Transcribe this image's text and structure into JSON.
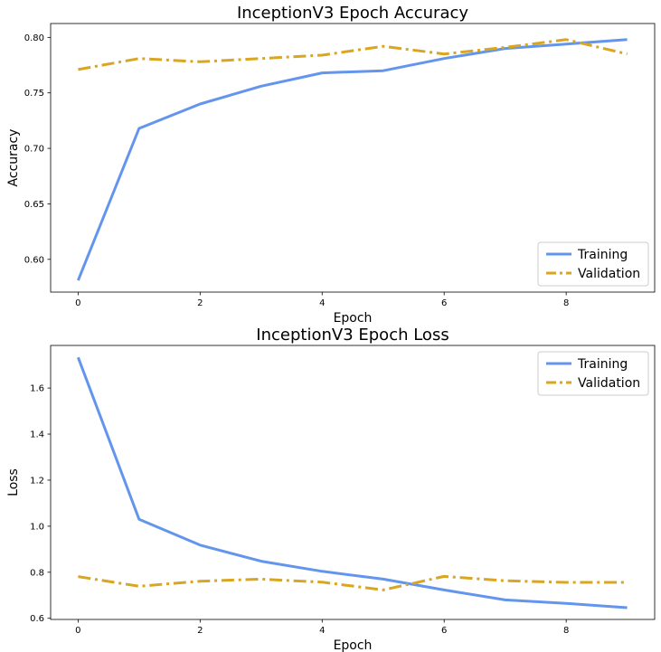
{
  "chart_data": [
    {
      "type": "line",
      "title": "InceptionV3 Epoch Accuracy",
      "xlabel": "Epoch",
      "ylabel": "Accuracy",
      "xlim": [
        -0.45,
        9.45
      ],
      "ylim": [
        0.5705,
        0.8125
      ],
      "xticks": [
        0,
        2,
        4,
        6,
        8
      ],
      "yticks": [
        0.6,
        0.65,
        0.7,
        0.75,
        0.8
      ],
      "ytick_labels": [
        "0.60",
        "0.65",
        "0.70",
        "0.75",
        "0.80"
      ],
      "legend_position": "lower-right",
      "grid": false,
      "x": [
        0,
        1,
        2,
        3,
        4,
        5,
        6,
        7,
        8,
        9
      ],
      "series": [
        {
          "name": "Training",
          "color": "#6495ED",
          "style": "solid",
          "values": [
            0.581,
            0.718,
            0.74,
            0.756,
            0.768,
            0.77,
            0.781,
            0.79,
            0.794,
            0.798
          ]
        },
        {
          "name": "Validation",
          "color": "#DAA520",
          "style": "dashdot",
          "values": [
            0.771,
            0.781,
            0.778,
            0.781,
            0.784,
            0.792,
            0.785,
            0.791,
            0.798,
            0.785
          ]
        }
      ]
    },
    {
      "type": "line",
      "title": "InceptionV3 Epoch Loss",
      "xlabel": "Epoch",
      "ylabel": "Loss",
      "xlim": [
        -0.45,
        9.45
      ],
      "ylim": [
        0.595,
        1.785
      ],
      "xticks": [
        0,
        2,
        4,
        6,
        8
      ],
      "yticks": [
        0.6,
        0.8,
        1.0,
        1.2,
        1.4,
        1.6
      ],
      "ytick_labels": [
        "0.6",
        "0.8",
        "1.0",
        "1.2",
        "1.4",
        "1.6"
      ],
      "legend_position": "upper-right",
      "grid": false,
      "x": [
        0,
        1,
        2,
        3,
        4,
        5,
        6,
        7,
        8,
        9
      ],
      "series": [
        {
          "name": "Training",
          "color": "#6495ED",
          "style": "solid",
          "values": [
            1.733,
            1.03,
            0.918,
            0.848,
            0.804,
            0.77,
            0.723,
            0.68,
            0.665,
            0.646
          ]
        },
        {
          "name": "Validation",
          "color": "#DAA520",
          "style": "dashdot",
          "values": [
            0.781,
            0.739,
            0.761,
            0.77,
            0.757,
            0.723,
            0.782,
            0.763,
            0.756,
            0.756
          ]
        }
      ]
    }
  ]
}
